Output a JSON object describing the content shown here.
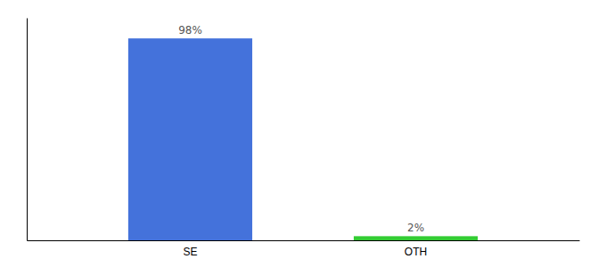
{
  "chart_data": {
    "type": "bar",
    "categories": [
      "SE",
      "OTH"
    ],
    "values": [
      98,
      2
    ],
    "colors": [
      "#4472db",
      "#33cc33"
    ],
    "value_labels": [
      "98%",
      "2%"
    ],
    "data_labels": true,
    "ylim": [
      0,
      108
    ],
    "tick_labels": "x"
  }
}
